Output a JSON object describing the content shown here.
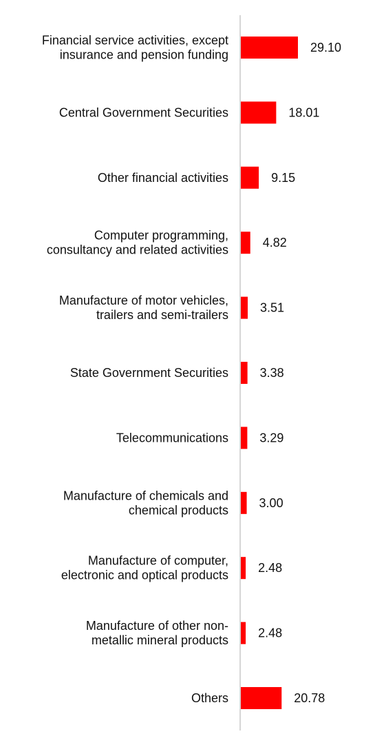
{
  "chart_data": {
    "type": "bar",
    "orientation": "horizontal",
    "title": "",
    "xlabel": "",
    "ylabel": "",
    "grid": false,
    "legend": "none",
    "xlim": [
      0,
      100
    ],
    "bar_color": "#ff0000",
    "axis_color": "#c8c8c8",
    "categories": [
      [
        "Financial service activities, except",
        "insurance and pension funding"
      ],
      [
        "Central Government Securities"
      ],
      [
        "Other financial activities"
      ],
      [
        "Computer programming,",
        "consultancy and related activities"
      ],
      [
        "Manufacture of motor vehicles,",
        "trailers and semi-trailers"
      ],
      [
        "State Government Securities"
      ],
      [
        "Telecommunications"
      ],
      [
        "Manufacture of chemicals and",
        "chemical products"
      ],
      [
        "Manufacture of computer,",
        "electronic and optical products"
      ],
      [
        "Manufacture of other non-",
        "metallic mineral products"
      ],
      [
        "Others"
      ]
    ],
    "values": [
      29.1,
      18.01,
      9.15,
      4.82,
      3.51,
      3.38,
      3.29,
      3.0,
      2.48,
      2.48,
      20.78
    ],
    "value_labels": [
      "29.10",
      "18.01",
      "9.15",
      "4.82",
      "3.51",
      "3.38",
      "3.29",
      "3.00",
      "2.48",
      "2.48",
      "20.78"
    ]
  }
}
